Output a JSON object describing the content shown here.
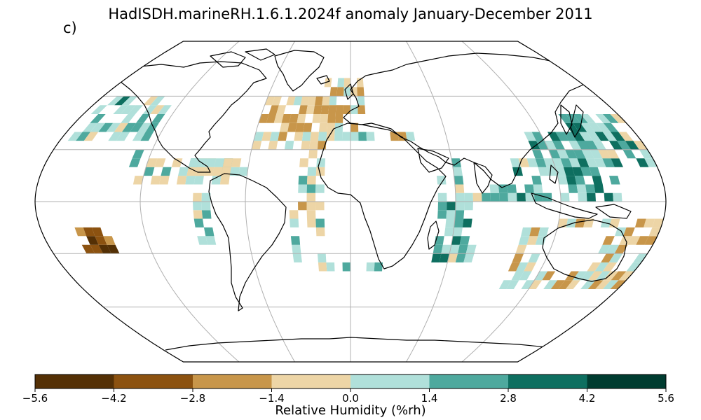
{
  "title": "HadISDH.marineRH.1.6.1.2024f anomaly January-December 2011",
  "panel_label": "c)",
  "projection": "Robinson",
  "colorbar": {
    "label": "Relative Humidity (%rh)",
    "ticks": [
      "−5.6",
      "−4.2",
      "−2.8",
      "−1.4",
      "0.0",
      "1.4",
      "2.8",
      "4.2",
      "5.6"
    ],
    "bins": [
      {
        "min": -5.6,
        "max": -4.2,
        "color": "#543005"
      },
      {
        "min": -4.2,
        "max": -2.8,
        "color": "#8c5210"
      },
      {
        "min": -2.8,
        "max": -1.4,
        "color": "#c8964a"
      },
      {
        "min": -1.4,
        "max": 0.0,
        "color": "#edd5a6"
      },
      {
        "min": 0.0,
        "max": 1.4,
        "color": "#b0e0da"
      },
      {
        "min": 1.4,
        "max": 2.8,
        "color": "#4ea99e"
      },
      {
        "min": 2.8,
        "max": 4.2,
        "color": "#0e6f60"
      },
      {
        "min": 4.2,
        "max": 5.6,
        "color": "#003c30"
      }
    ]
  },
  "gridlines": {
    "meridians": [
      -120,
      -60,
      0,
      60,
      120
    ],
    "parallels": [
      -60,
      -30,
      0,
      30,
      60
    ]
  },
  "colors": {
    "coast": "#000000",
    "grid": "#b0b0b0",
    "outline": "#000000"
  }
}
